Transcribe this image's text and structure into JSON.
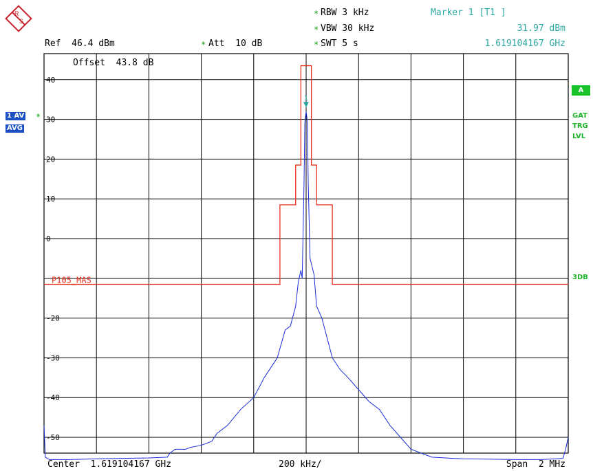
{
  "header": {
    "rbw": "RBW 3 kHz",
    "vbw": "VBW 30 kHz",
    "swt": "SWT 5 s",
    "ref": "Ref  46.4 dBm",
    "att": "Att  10 dB",
    "marker_title": "Marker 1 [T1 ]",
    "marker_level": "31.97 dBm",
    "marker_freq": "1.619104167 GHz",
    "offset": "Offset  43.8 dB"
  },
  "side": {
    "trace_label": "1 AV",
    "trace_mode": "AVG",
    "box_a": "A",
    "gat": "GAT",
    "trg": "TRG",
    "lvl": "LVL",
    "db3": "3DB"
  },
  "footer": {
    "center": "Center  1.619104167 GHz",
    "div": "200 kHz/",
    "span": "Span  2 MHz"
  },
  "colors": {
    "grid": "#000000",
    "trace": "#1a2bd8",
    "limit": "#e8301a",
    "marker": "#2aa8a0",
    "label_blue": "#1d4fc4",
    "green": "#19c42a"
  },
  "chart_data": {
    "type": "line",
    "xlabel": "",
    "ylabel": "",
    "xlim": [
      -1000,
      1000
    ],
    "ylim": [
      -55,
      45
    ],
    "y_ticks": [
      40,
      30,
      20,
      10,
      0,
      -10,
      -20,
      -30,
      -40,
      -50
    ],
    "y_tick_labels": [
      "40",
      "30",
      "20",
      "10",
      "0",
      "",
      "-20",
      "-30",
      "-40",
      "-50"
    ],
    "limit_line_label": "P105_MAS",
    "marker_label": "1",
    "marker": {
      "x": 0,
      "y": 31.97
    },
    "series": [
      {
        "points": [
          [
            -1000,
            -47
          ],
          [
            -995,
            -55
          ],
          [
            -980,
            -55.6
          ],
          [
            -900,
            -55.6
          ],
          [
            -800,
            -55.4
          ],
          [
            -700,
            -55.3
          ],
          [
            -600,
            -55.2
          ],
          [
            -530,
            -55
          ],
          [
            -520,
            -54
          ],
          [
            -500,
            -53
          ],
          [
            -460,
            -53
          ],
          [
            -440,
            -52.5
          ],
          [
            -400,
            -52
          ],
          [
            -360,
            -51
          ],
          [
            -340,
            -49
          ],
          [
            -300,
            -47
          ],
          [
            -250,
            -43
          ],
          [
            -200,
            -40
          ],
          [
            -160,
            -35
          ],
          [
            -130,
            -32
          ],
          [
            -110,
            -30
          ],
          [
            -80,
            -23
          ],
          [
            -60,
            -22
          ],
          [
            -40,
            -17
          ],
          [
            -30,
            -11
          ],
          [
            -20,
            -8
          ],
          [
            -15,
            -10
          ],
          [
            -8,
            14
          ],
          [
            -5,
            29
          ],
          [
            -2,
            31
          ],
          [
            0,
            31.97
          ],
          [
            2,
            31
          ],
          [
            5,
            29
          ],
          [
            8,
            14
          ],
          [
            15,
            -5
          ],
          [
            30,
            -9
          ],
          [
            40,
            -17
          ],
          [
            60,
            -20
          ],
          [
            100,
            -30
          ],
          [
            130,
            -33
          ],
          [
            160,
            -35
          ],
          [
            200,
            -38
          ],
          [
            240,
            -41
          ],
          [
            280,
            -43
          ],
          [
            320,
            -47
          ],
          [
            360,
            -50
          ],
          [
            400,
            -53
          ],
          [
            440,
            -54
          ],
          [
            480,
            -55
          ],
          [
            560,
            -55.3
          ],
          [
            600,
            -55.4
          ],
          [
            700,
            -55.5
          ],
          [
            800,
            -55.6
          ],
          [
            900,
            -55.6
          ],
          [
            980,
            -55.3
          ],
          [
            990,
            -53
          ],
          [
            1000,
            -50
          ]
        ]
      },
      {
        "name": "P105_MAS",
        "points": [
          [
            -1000,
            -11.5
          ],
          [
            -100,
            -11.5
          ],
          [
            -100,
            8.5
          ],
          [
            -40,
            8.5
          ],
          [
            -40,
            18.5
          ],
          [
            -20,
            18.5
          ],
          [
            -20,
            43.5
          ],
          [
            20,
            43.5
          ],
          [
            20,
            18.5
          ],
          [
            40,
            18.5
          ],
          [
            40,
            8.5
          ],
          [
            100,
            8.5
          ],
          [
            100,
            -11.5
          ],
          [
            1000,
            -11.5
          ]
        ]
      }
    ]
  }
}
